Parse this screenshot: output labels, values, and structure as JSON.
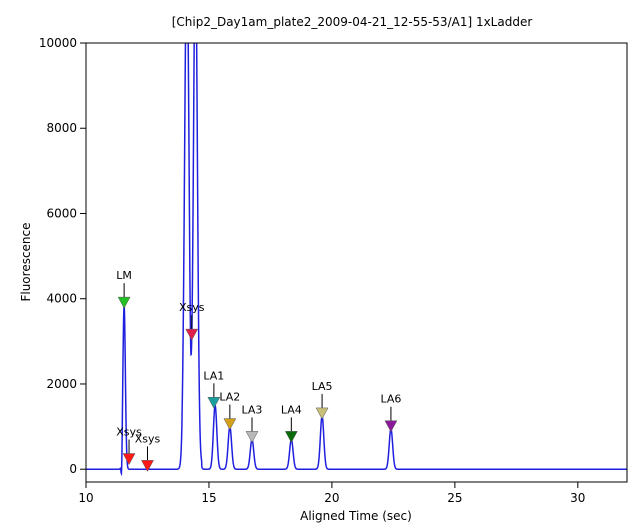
{
  "chart_data": {
    "type": "line",
    "title": "[Chip2_Day1am_plate2_2009-04-21_12-55-53/A1] 1xLadder",
    "xlabel": "Aligned Time (sec)",
    "ylabel": "Fluorescence",
    "xlim": [
      10,
      32
    ],
    "ylim": [
      -300,
      10000
    ],
    "x_ticks": [
      10,
      15,
      20,
      25,
      30
    ],
    "y_ticks": [
      0,
      2000,
      4000,
      6000,
      8000,
      10000
    ],
    "grid": false,
    "line_color": "#1f1fe0",
    "series": [
      {
        "peaks": [
          {
            "x": 11.55,
            "y": 3850,
            "w": 0.05
          },
          {
            "x": 14.1,
            "y": 12000,
            "w": 0.09
          },
          {
            "x": 14.45,
            "y": 12000,
            "w": 0.08
          },
          {
            "x": 15.25,
            "y": 1500,
            "w": 0.07
          },
          {
            "x": 15.85,
            "y": 1000,
            "w": 0.07
          },
          {
            "x": 16.75,
            "y": 700,
            "w": 0.07
          },
          {
            "x": 18.35,
            "y": 700,
            "w": 0.07
          },
          {
            "x": 19.6,
            "y": 1250,
            "w": 0.07
          },
          {
            "x": 22.4,
            "y": 950,
            "w": 0.07
          }
        ],
        "dips": [
          {
            "x": 11.45,
            "y": -500,
            "w": 0.02
          },
          {
            "x": 14.25,
            "y": -500,
            "w": 0.03
          }
        ]
      }
    ],
    "markers": [
      {
        "label": "LM",
        "x": 11.55,
        "y": 3850,
        "color": "#22c022"
      },
      {
        "label": "Xsys",
        "x": 11.75,
        "y": 180,
        "color": "#ff1a1a"
      },
      {
        "label": "Xsys",
        "x": 12.5,
        "y": 20,
        "color": "#ff1a1a"
      },
      {
        "label": "Xsys",
        "x": 14.3,
        "y": 3100,
        "color": "#e0204a"
      },
      {
        "label": "LA1",
        "x": 15.2,
        "y": 1500,
        "color": "#1a9e9e"
      },
      {
        "label": "LA2",
        "x": 15.85,
        "y": 1000,
        "color": "#d4a017"
      },
      {
        "label": "LA3",
        "x": 16.75,
        "y": 700,
        "color": "#b8b8b8"
      },
      {
        "label": "LA4",
        "x": 18.35,
        "y": 700,
        "color": "#0b6b0b"
      },
      {
        "label": "LA5",
        "x": 19.6,
        "y": 1250,
        "color": "#c8c078"
      },
      {
        "label": "LA6",
        "x": 22.4,
        "y": 950,
        "color": "#8b1a9a"
      }
    ]
  }
}
